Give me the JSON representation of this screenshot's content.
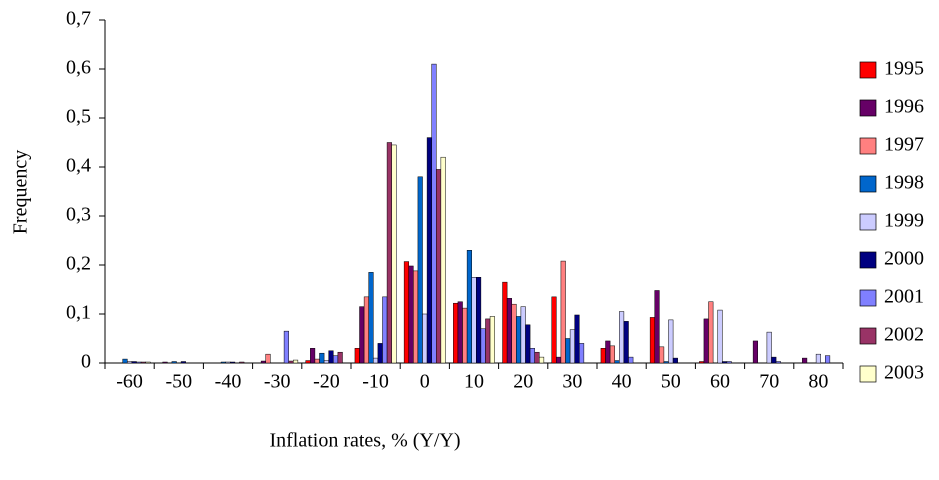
{
  "chart_data": {
    "type": "bar",
    "xlabel": "Inflation rates, % (Y/Y)",
    "ylabel": "Frequency",
    "categories": [
      "-60",
      "-50",
      "-40",
      "-30",
      "-20",
      "-10",
      "0",
      "10",
      "20",
      "30",
      "40",
      "50",
      "60",
      "70",
      "80"
    ],
    "series": [
      {
        "name": "1995",
        "color": "#ff0000",
        "values": [
          0,
          0,
          0,
          0,
          0.005,
          0.03,
          0.207,
          0.122,
          0.165,
          0.135,
          0.03,
          0.093,
          0.003,
          0,
          0
        ]
      },
      {
        "name": "1996",
        "color": "#660066",
        "values": [
          0,
          0.002,
          0,
          0.004,
          0.03,
          0.115,
          0.198,
          0.125,
          0.132,
          0.012,
          0.045,
          0.148,
          0.09,
          0.045,
          0.01
        ]
      },
      {
        "name": "1997",
        "color": "#ff8080",
        "values": [
          0,
          0,
          0,
          0.018,
          0.008,
          0.135,
          0.188,
          0.112,
          0.12,
          0.208,
          0.035,
          0.033,
          0.125,
          0,
          0
        ]
      },
      {
        "name": "1998",
        "color": "#0066cc",
        "values": [
          0.008,
          0.003,
          0.002,
          0,
          0.02,
          0.185,
          0.38,
          0.23,
          0.095,
          0.05,
          0.005,
          0.003,
          0,
          0,
          0
        ]
      },
      {
        "name": "1999",
        "color": "#ccccff",
        "values": [
          0.003,
          0,
          0.002,
          0,
          0.005,
          0.01,
          0.1,
          0.175,
          0.115,
          0.068,
          0.105,
          0.088,
          0.108,
          0.063,
          0.018
        ]
      },
      {
        "name": "2000",
        "color": "#000080",
        "values": [
          0.003,
          0.003,
          0.002,
          0,
          0.025,
          0.04,
          0.46,
          0.175,
          0.078,
          0.098,
          0.085,
          0.01,
          0.003,
          0.012,
          0
        ]
      },
      {
        "name": "2001",
        "color": "#8080ff",
        "values": [
          0.002,
          0,
          0,
          0.065,
          0.015,
          0.135,
          0.61,
          0.07,
          0.03,
          0.04,
          0.012,
          0,
          0.003,
          0.003,
          0.015
        ]
      },
      {
        "name": "2002",
        "color": "#993366",
        "values": [
          0.002,
          0,
          0.002,
          0.004,
          0.022,
          0.45,
          0.395,
          0.09,
          0.022,
          0,
          0,
          0,
          0,
          0,
          0
        ]
      },
      {
        "name": "2003",
        "color": "#ffffcc",
        "values": [
          0.002,
          0,
          0,
          0.006,
          0,
          0.445,
          0.42,
          0.095,
          0.012,
          0,
          0,
          0,
          0,
          0,
          0
        ]
      }
    ],
    "ylim": [
      0,
      0.7
    ],
    "yticks": [
      0,
      {
        "value": 0.1,
        "label": "0,1"
      },
      {
        "value": 0.2,
        "label": "0,2"
      },
      {
        "value": 0.3,
        "label": "0,3"
      },
      {
        "value": 0.4,
        "label": "0,4"
      },
      {
        "value": 0.5,
        "label": "0,5"
      },
      {
        "value": 0.6,
        "label": "0,6"
      },
      {
        "value": 0.7,
        "label": "0,7"
      }
    ],
    "grid": false,
    "legend": "right"
  }
}
